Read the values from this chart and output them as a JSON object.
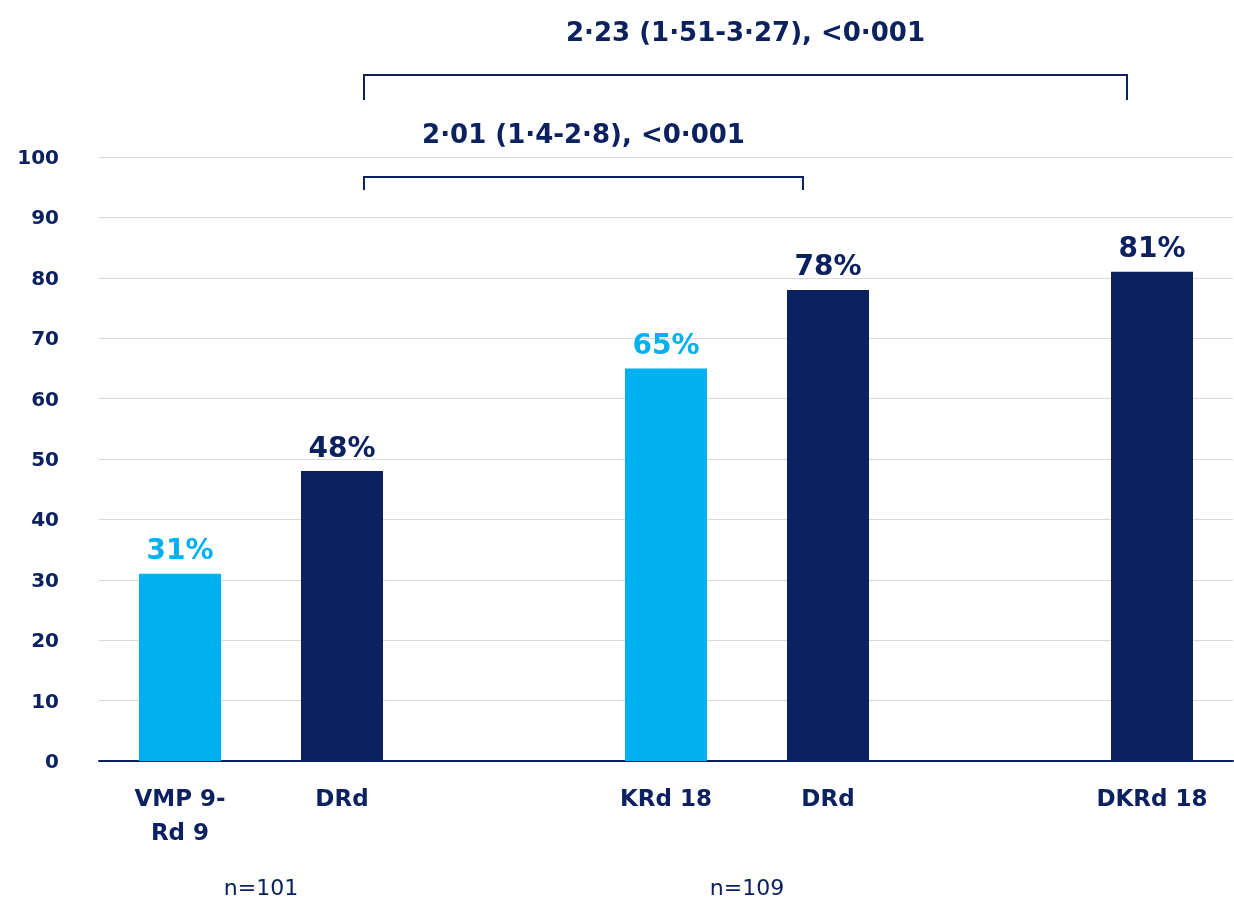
{
  "chart_data": {
    "type": "bar",
    "categories": [
      "VMP 9-\nRd 9",
      "DRd",
      null,
      "KRd 18",
      "DRd",
      null,
      "DKRd 18"
    ],
    "values": [
      31,
      48,
      null,
      65,
      78,
      null,
      81
    ],
    "colors": [
      "#00b0f0",
      "#0b2160",
      null,
      "#00b0f0",
      "#0b2160",
      null,
      "#0b2160"
    ],
    "value_labels": [
      "31%",
      "48%",
      null,
      "65%",
      "78%",
      null,
      "81%"
    ],
    "ylim": [
      0,
      100
    ],
    "yticks": [
      0,
      10,
      20,
      30,
      40,
      50,
      60,
      70,
      80,
      90,
      100
    ],
    "grid": "y",
    "annotations": [
      "2·23 (1·51-3·27), <0·001",
      "2·01 (1·4-2·8), <0·001",
      "n=101",
      "n=109"
    ]
  }
}
